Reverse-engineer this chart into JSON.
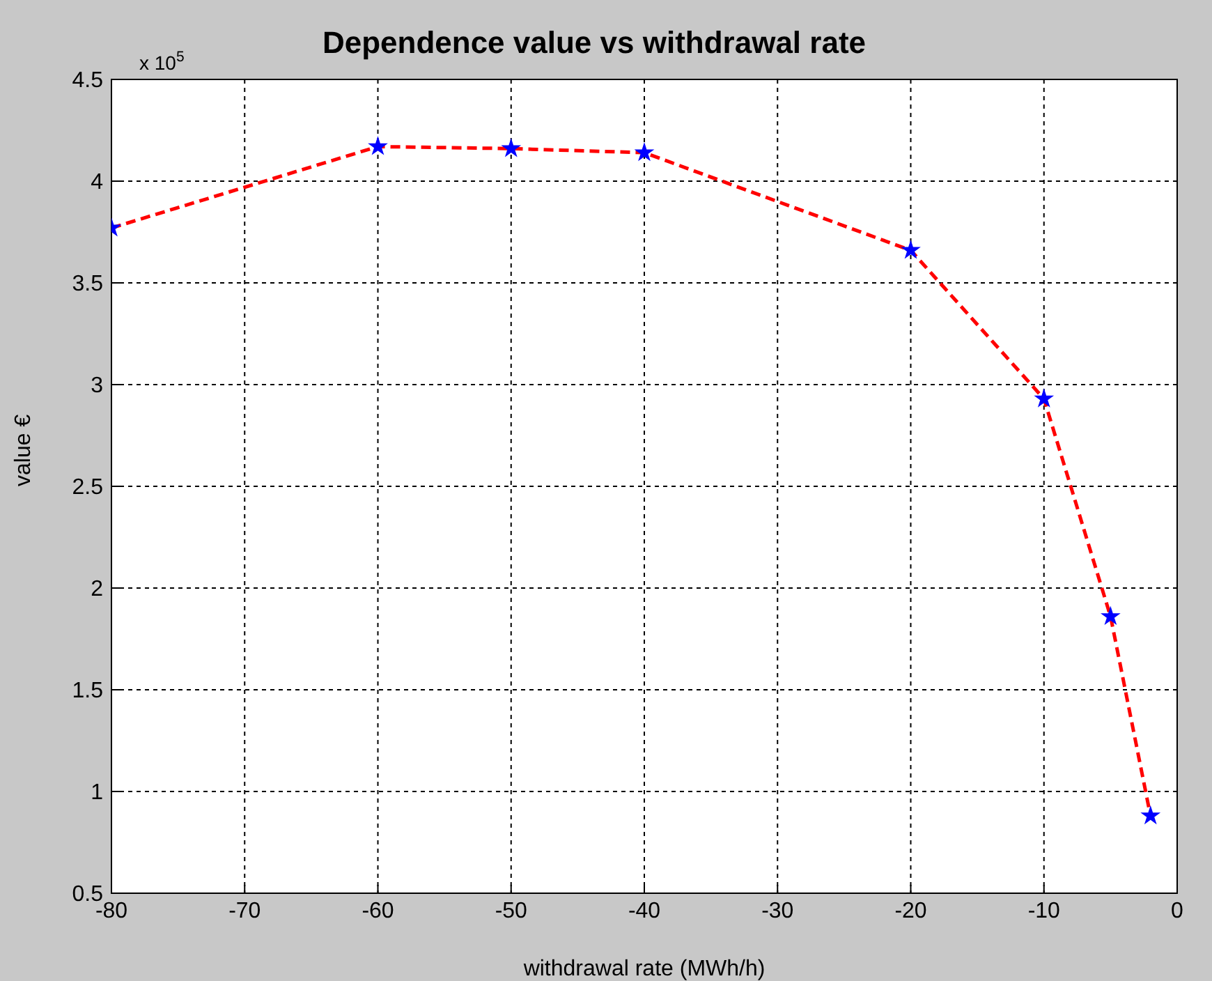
{
  "chart_data": {
    "type": "line",
    "title": "Dependence value vs withdrawal rate",
    "xlabel": "withdrawal rate (MWh/h)",
    "ylabel": "value €",
    "annotations": [
      "x 10$^{5}$"
    ],
    "x": [
      -80,
      -60,
      -50,
      -40,
      -20,
      -10,
      -5,
      -2
    ],
    "series": [
      {
        "color": "#ff0000",
        "line_style": "dashed",
        "marker": "none",
        "values": [
          3.77,
          4.17,
          4.16,
          4.14,
          3.66,
          2.93,
          1.86,
          0.88
        ]
      },
      {
        "type": "scatter",
        "color": "#0000ff",
        "marker": "star",
        "values": [
          3.77,
          4.17,
          4.16,
          4.14,
          3.66,
          2.93,
          1.86,
          0.88
        ]
      }
    ],
    "xlim": [
      -80,
      0
    ],
    "xticks": [
      -80,
      -70,
      -60,
      -50,
      -40,
      -30,
      -20,
      -10,
      0
    ],
    "ylim": [
      0.5,
      4.5
    ],
    "yticks": [
      0.5,
      1,
      1.5,
      2,
      2.5,
      3,
      3.5,
      4,
      4.5
    ],
    "grid": true,
    "legend": false
  }
}
